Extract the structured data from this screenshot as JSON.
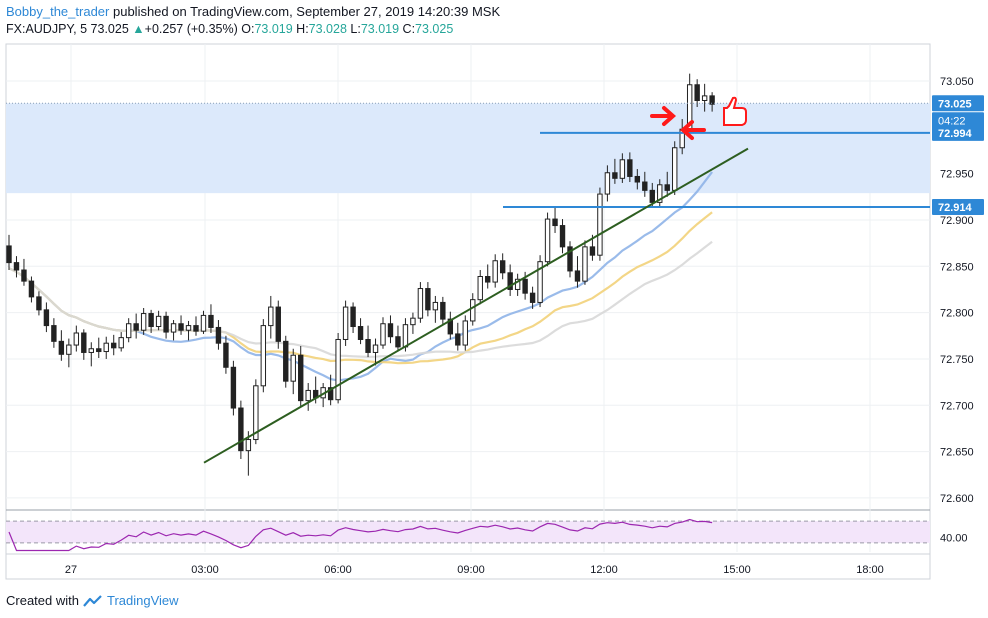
{
  "header": {
    "author": "Bobby_the_trader",
    "published": "published on TradingView.com, September 27, 2019 14:20:39 MSK",
    "symbol": "FX:AUDJPY, 5",
    "last": "73.025",
    "change_arrow": "▲",
    "change": "+0.257 (+0.35%)",
    "o_label": "O:",
    "o_val": "73.019",
    "h_label": "H:",
    "h_val": "73.028",
    "l_label": "L:",
    "l_val": "73.019",
    "c_label": "C:",
    "c_val": "73.025"
  },
  "footer": {
    "created_with": "Created with",
    "brand": "TradingView"
  },
  "colors": {
    "up": "#26a69a",
    "candle": "#222222",
    "accent": "#2e88d6",
    "zone": "#dce9fb",
    "trendline": "#2d5e20",
    "ma_fast": "#8fb4e8",
    "ma_mid": "#f2d27a",
    "ma_slow": "#d8d8d8",
    "rsi": "#9c27b0",
    "rsi_bg": "#f3e5fa",
    "marker": "#ff1a1a"
  },
  "chart_data": {
    "type": "candlestick",
    "symbol": "FX:AUDJPY",
    "timeframe": "5",
    "x_ticks": [
      "27",
      "03:00",
      "06:00",
      "09:00",
      "12:00",
      "15:00",
      "18:00"
    ],
    "y_ticks": [
      "72.600",
      "72.650",
      "72.700",
      "72.750",
      "72.800",
      "72.850",
      "72.900",
      "72.950",
      "73.050"
    ],
    "ylim": [
      72.588,
      73.09
    ],
    "price_labels": [
      {
        "value": "73.025",
        "kind": "last"
      },
      {
        "value": "04:22",
        "kind": "countdown"
      },
      {
        "value": "72.994",
        "kind": "level"
      },
      {
        "value": "72.914",
        "kind": "level"
      }
    ],
    "levels": [
      72.994,
      72.914
    ],
    "zone": {
      "from": 72.929,
      "to": 73.026
    },
    "rsi": {
      "tick": "40.00",
      "upper": 70,
      "lower": 30
    },
    "candles": [
      [
        72.872,
        72.884,
        72.846,
        72.854
      ],
      [
        72.854,
        72.861,
        72.838,
        72.846
      ],
      [
        72.846,
        72.858,
        72.829,
        72.834
      ],
      [
        72.834,
        72.839,
        72.811,
        72.817
      ],
      [
        72.817,
        72.823,
        72.797,
        72.803
      ],
      [
        72.803,
        72.811,
        72.779,
        72.786
      ],
      [
        72.786,
        72.794,
        72.762,
        72.769
      ],
      [
        72.769,
        72.781,
        72.748,
        72.755
      ],
      [
        72.755,
        72.772,
        72.741,
        72.765
      ],
      [
        72.765,
        72.786,
        72.758,
        72.778
      ],
      [
        72.778,
        72.782,
        72.749,
        72.757
      ],
      [
        72.757,
        72.768,
        72.742,
        72.761
      ],
      [
        72.761,
        72.773,
        72.751,
        72.758
      ],
      [
        72.758,
        72.774,
        72.75,
        72.767
      ],
      [
        72.767,
        72.776,
        72.754,
        72.762
      ],
      [
        72.762,
        72.779,
        72.758,
        72.773
      ],
      [
        72.773,
        72.794,
        72.768,
        72.788
      ],
      [
        72.788,
        72.799,
        72.772,
        72.781
      ],
      [
        72.781,
        72.805,
        72.776,
        72.799
      ],
      [
        72.799,
        72.803,
        72.778,
        72.785
      ],
      [
        72.785,
        72.802,
        72.781,
        72.796
      ],
      [
        72.796,
        72.801,
        72.772,
        72.779
      ],
      [
        72.779,
        72.792,
        72.77,
        72.788
      ],
      [
        72.788,
        72.797,
        72.776,
        72.781
      ],
      [
        72.781,
        72.791,
        72.77,
        72.786
      ],
      [
        72.786,
        72.796,
        72.775,
        72.78
      ],
      [
        72.78,
        72.802,
        72.777,
        72.797
      ],
      [
        72.797,
        72.809,
        72.778,
        72.784
      ],
      [
        72.784,
        72.792,
        72.76,
        72.767
      ],
      [
        72.767,
        72.775,
        72.734,
        72.741
      ],
      [
        72.741,
        72.748,
        72.689,
        72.697
      ],
      [
        72.697,
        72.705,
        72.642,
        72.651
      ],
      [
        72.651,
        72.672,
        72.624,
        72.663
      ],
      [
        72.663,
        72.728,
        72.658,
        72.721
      ],
      [
        72.721,
        72.793,
        72.714,
        72.786
      ],
      [
        72.786,
        72.818,
        72.772,
        72.806
      ],
      [
        72.806,
        72.813,
        72.761,
        72.769
      ],
      [
        72.769,
        72.775,
        72.719,
        72.726
      ],
      [
        72.726,
        72.761,
        72.712,
        72.754
      ],
      [
        72.754,
        72.764,
        72.698,
        72.705
      ],
      [
        72.705,
        72.724,
        72.694,
        72.716
      ],
      [
        72.716,
        72.731,
        72.702,
        72.708
      ],
      [
        72.708,
        72.724,
        72.698,
        72.719
      ],
      [
        72.719,
        72.733,
        72.7,
        72.706
      ],
      [
        72.706,
        72.778,
        72.702,
        72.771
      ],
      [
        72.771,
        72.813,
        72.764,
        72.806
      ],
      [
        72.806,
        72.811,
        72.778,
        72.785
      ],
      [
        72.785,
        72.794,
        72.766,
        72.771
      ],
      [
        72.771,
        72.786,
        72.752,
        72.757
      ],
      [
        72.757,
        72.772,
        72.743,
        72.765
      ],
      [
        72.765,
        72.795,
        72.761,
        72.788
      ],
      [
        72.788,
        72.797,
        72.767,
        72.774
      ],
      [
        72.774,
        72.786,
        72.758,
        72.763
      ],
      [
        72.763,
        72.794,
        72.758,
        72.787
      ],
      [
        72.787,
        72.8,
        72.777,
        72.794
      ],
      [
        72.794,
        72.833,
        72.789,
        72.826
      ],
      [
        72.826,
        72.833,
        72.796,
        72.803
      ],
      [
        72.803,
        72.818,
        72.789,
        72.811
      ],
      [
        72.811,
        72.817,
        72.787,
        72.793
      ],
      [
        72.793,
        72.801,
        72.771,
        72.777
      ],
      [
        72.777,
        72.789,
        72.759,
        72.765
      ],
      [
        72.765,
        72.797,
        72.759,
        72.791
      ],
      [
        72.791,
        72.821,
        72.786,
        72.814
      ],
      [
        72.814,
        72.846,
        72.809,
        72.839
      ],
      [
        72.839,
        72.852,
        72.826,
        72.833
      ],
      [
        72.833,
        72.863,
        72.827,
        72.856
      ],
      [
        72.856,
        72.864,
        72.836,
        72.843
      ],
      [
        72.843,
        72.852,
        72.818,
        72.825
      ],
      [
        72.825,
        72.842,
        72.818,
        72.836
      ],
      [
        72.836,
        72.844,
        72.814,
        72.821
      ],
      [
        72.821,
        72.828,
        72.804,
        72.811
      ],
      [
        72.811,
        72.862,
        72.806,
        72.855
      ],
      [
        72.855,
        72.908,
        72.85,
        72.901
      ],
      [
        72.901,
        72.915,
        72.886,
        72.894
      ],
      [
        72.894,
        72.901,
        72.864,
        72.871
      ],
      [
        72.871,
        72.877,
        72.838,
        72.845
      ],
      [
        72.845,
        72.861,
        72.827,
        72.834
      ],
      [
        72.834,
        72.878,
        72.83,
        72.871
      ],
      [
        72.871,
        72.884,
        72.856,
        72.862
      ],
      [
        72.862,
        72.935,
        72.856,
        72.928
      ],
      [
        72.928,
        72.959,
        72.92,
        72.951
      ],
      [
        72.951,
        72.966,
        72.939,
        72.945
      ],
      [
        72.945,
        72.972,
        72.94,
        72.965
      ],
      [
        72.965,
        72.973,
        72.941,
        72.947
      ],
      [
        72.947,
        72.955,
        72.933,
        72.941
      ],
      [
        72.941,
        72.952,
        72.925,
        72.932
      ],
      [
        72.932,
        72.94,
        72.913,
        72.919
      ],
      [
        72.919,
        72.944,
        72.914,
        72.938
      ],
      [
        72.938,
        72.952,
        72.925,
        72.932
      ],
      [
        72.932,
        72.985,
        72.927,
        72.978
      ],
      [
        72.978,
        73.009,
        72.971,
        72.998
      ],
      [
        72.998,
        73.058,
        72.993,
        73.046
      ],
      [
        73.046,
        73.052,
        73.022,
        73.029
      ],
      [
        73.029,
        73.047,
        73.017,
        73.034
      ],
      [
        73.034,
        73.038,
        73.017,
        73.025
      ]
    ]
  }
}
